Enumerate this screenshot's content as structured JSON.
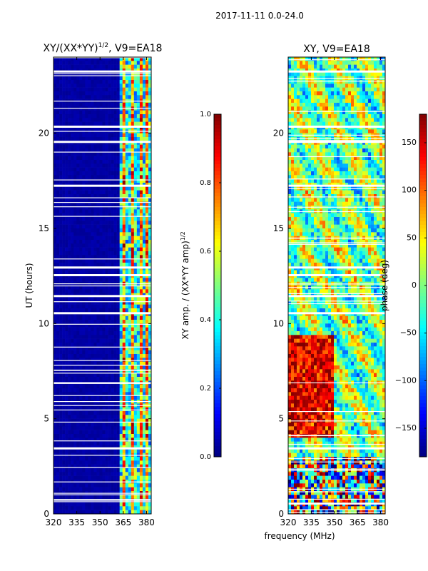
{
  "suptitle": "2017-11-11 0.0-24.0",
  "shared_xlabel": "frequency (MHz)",
  "chart_data": [
    {
      "type": "heatmap",
      "title_main": "XY/(XX*YY)",
      "title_exp": "1/2",
      "title_tail": ", V9=EA18",
      "ylabel": "UT (hours)",
      "x": [
        320,
        335,
        350,
        365,
        380
      ],
      "xlim": [
        320,
        383
      ],
      "y": [
        0,
        5,
        10,
        15,
        20
      ],
      "ylim": [
        0,
        24
      ],
      "gap_hours": [
        3.5,
        10.6,
        11.5,
        12.6,
        13.0,
        17.3,
        19.6,
        20.4,
        23.3
      ],
      "colorbar": {
        "label_main": "XY amp. / (XX*YY amp)",
        "label_exp": "1/2",
        "ticks": [
          "0.0",
          "0.2",
          "0.4",
          "0.6",
          "0.8",
          "1.0"
        ],
        "tick_values": [
          0.0,
          0.2,
          0.4,
          0.6,
          0.8,
          1.0
        ],
        "range": [
          0.0,
          1.0
        ]
      }
    },
    {
      "type": "heatmap",
      "title": "XY, V9=EA18",
      "x": [
        320,
        335,
        350,
        365,
        380
      ],
      "xlim": [
        320,
        383
      ],
      "y": [
        0,
        5,
        10,
        15,
        20
      ],
      "ylim": [
        0,
        24
      ],
      "colorbar": {
        "label": "phase (deg)",
        "ticks": [
          "150",
          "100",
          "50",
          "0",
          "−50",
          "−100",
          "−150"
        ],
        "tick_values": [
          150,
          100,
          50,
          0,
          -50,
          -100,
          -150
        ],
        "range": [
          -180,
          180
        ]
      }
    }
  ]
}
